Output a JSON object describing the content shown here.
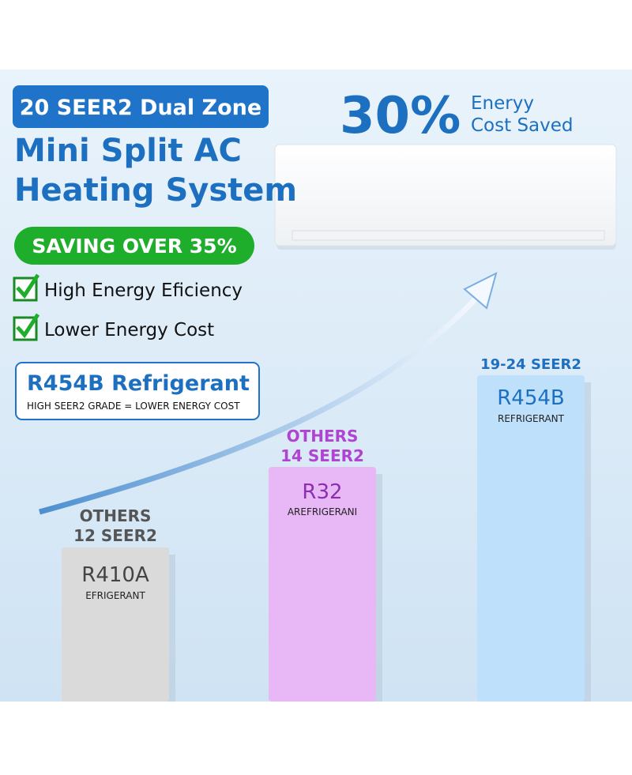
{
  "headline": {
    "badge": "20 SEER2 Dual Zone",
    "title_line1": "Mini Split AC",
    "title_line2": "Heating System",
    "saving": "SAVING OVER 35%"
  },
  "features": [
    "High Energy Eficiency",
    "Lower Energy Cost"
  ],
  "refrigerant_box": {
    "title": "R454B Refrigerant",
    "subtitle": "HIGH SEER2 GRADE = LOWER ENERGY COST"
  },
  "savings": {
    "percent": "30%",
    "line1": "Eneryy",
    "line2": "Cost Saved"
  },
  "columns": [
    {
      "top1": "OTHERS",
      "top2": "12 SEER2",
      "name": "R410A",
      "sub": "EFRIGERANT"
    },
    {
      "top1": "OTHERS",
      "top2": "14 SEER2",
      "name": "R32",
      "sub": "AREFRIGERANI"
    },
    {
      "top2": "19-24 SEER2",
      "name": "R454B",
      "sub": "REFRIGERANT"
    }
  ]
}
